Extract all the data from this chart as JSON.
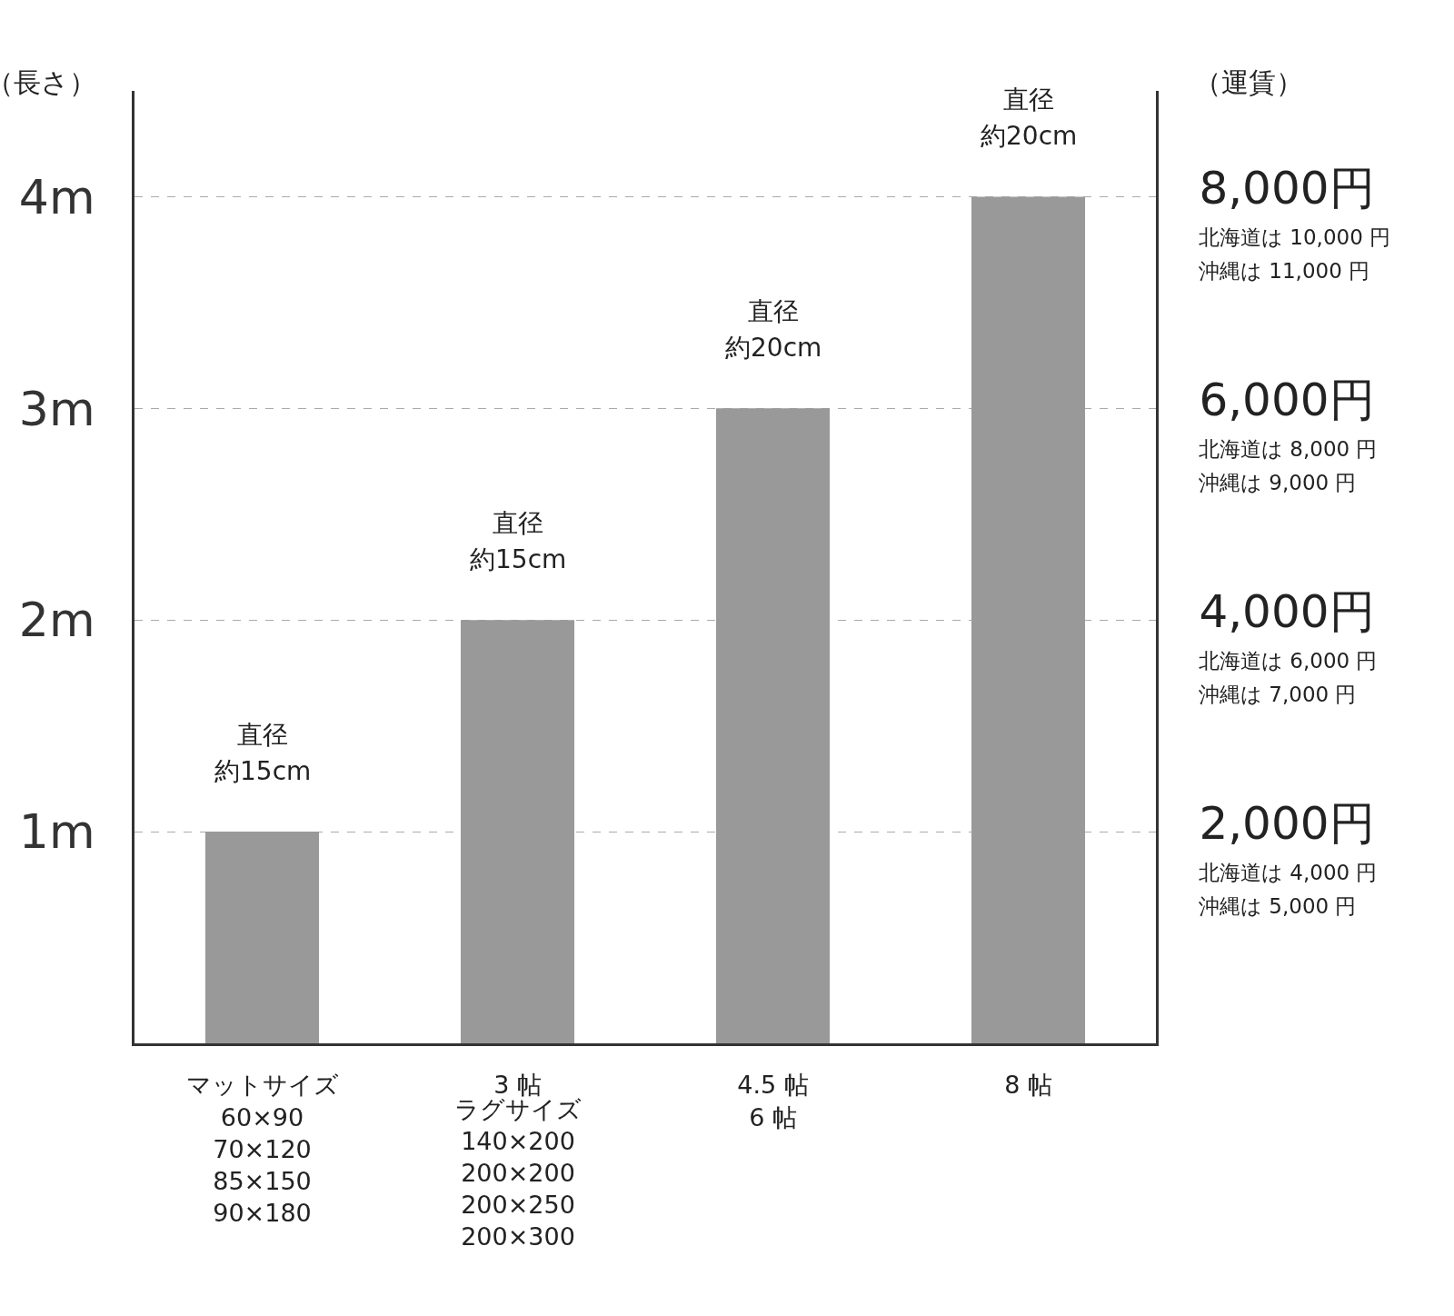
{
  "chart_data": {
    "type": "bar",
    "categories": [
      "マットサイズ\n60×90\n70×120\n85×150\n90×180",
      "3 帖",
      "4.5 帖\n6 帖",
      "8 帖"
    ],
    "values": [
      1,
      2,
      3,
      4
    ],
    "color": "#999999",
    "ylabel": "（長さ）",
    "y2label": "（運賃）",
    "ylim": [
      0,
      4.5
    ],
    "yticks": [
      {
        "value": 1,
        "label": "1m"
      },
      {
        "value": 2,
        "label": "2m"
      },
      {
        "value": 3,
        "label": "3m"
      },
      {
        "value": 4,
        "label": "4m"
      }
    ],
    "y2lim": [
      0,
      9000
    ],
    "y2ticks": [
      {
        "value": 2000,
        "label": "2,000円"
      },
      {
        "value": 4000,
        "label": "4,000円"
      },
      {
        "value": 6000,
        "label": "6,000円"
      },
      {
        "value": 8000,
        "label": "8,000円"
      }
    ],
    "annotations": [
      "直径",
      "約15cm",
      "直径",
      "約15cm",
      "直径",
      "約20cm",
      "直径",
      "約20cm",
      "ラグサイズ\n140×200\n200×200\n200×250\n200×300",
      "北海道は 4,000 円",
      "沖縄は 5,000 円",
      "北海道は 6,000 円",
      "沖縄は 7,000 円",
      "北海道は 8,000 円",
      "沖縄は 9,000 円",
      "北海道は 10,000 円",
      "沖縄は 11,000 円"
    ],
    "grid": "y"
  }
}
